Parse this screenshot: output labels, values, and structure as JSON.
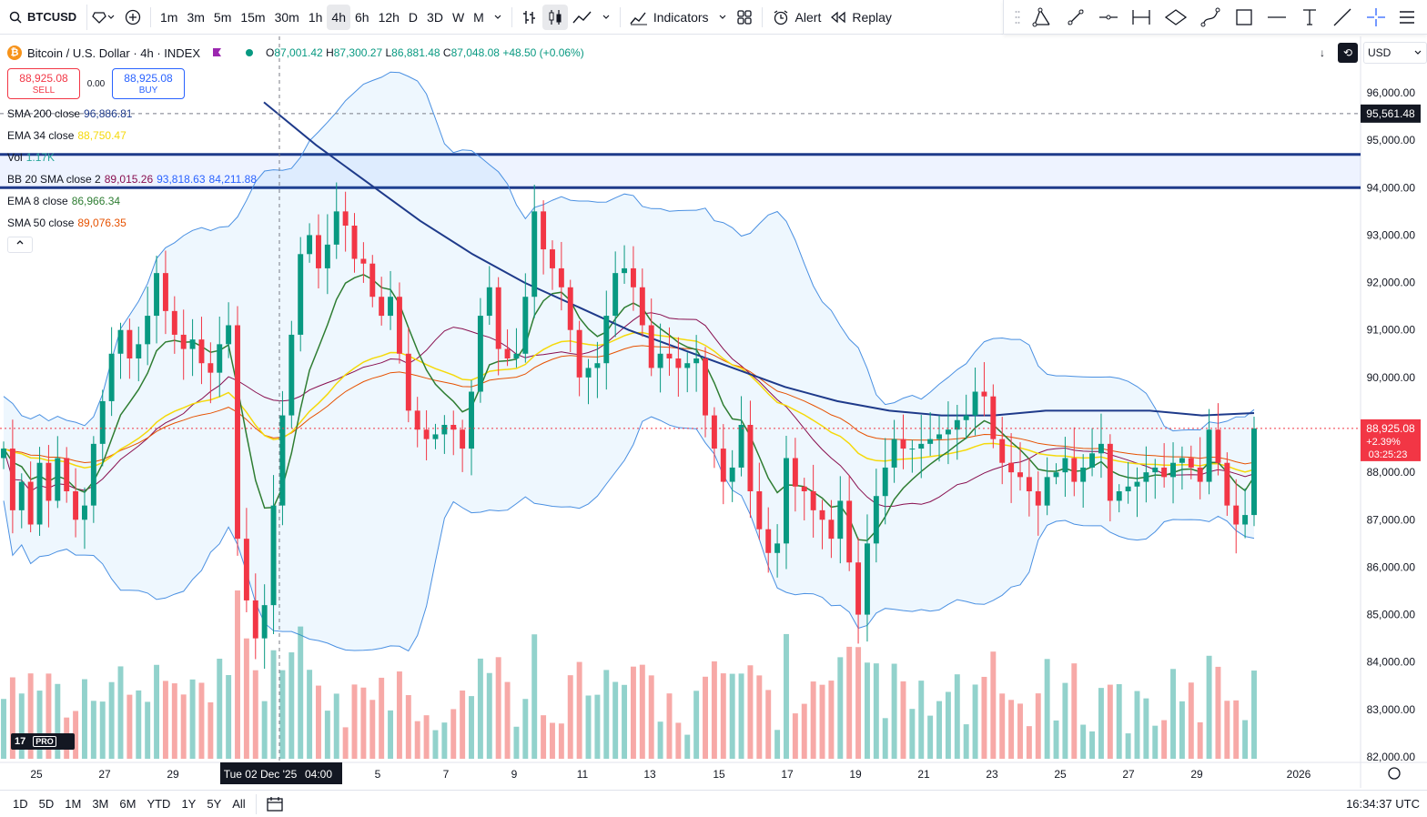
{
  "toolbar": {
    "symbol": "BTCUSD",
    "intervals": [
      "1m",
      "3m",
      "5m",
      "15m",
      "30m",
      "1h",
      "4h",
      "6h",
      "12h",
      "D",
      "3D",
      "W",
      "M"
    ],
    "active_interval": "4h",
    "indicators_label": "Indicators",
    "alert_label": "Alert",
    "replay_label": "Replay"
  },
  "legend": {
    "title": "Bitcoin / U.S. Dollar · 4h · INDEX",
    "open_key": "O",
    "open": "87,001.42",
    "high_key": "H",
    "high": "87,300.27",
    "low_key": "L",
    "low": "86,881.48",
    "close_key": "C",
    "close": "87,048.08",
    "change": "+48.50 (+0.06%)",
    "sell_price": "88,925.08",
    "sell_label": "SELL",
    "spread": "0.00",
    "buy_price": "88,925.08",
    "buy_label": "BUY"
  },
  "indicators": [
    {
      "name": "SMA 200 close",
      "values": [
        "96,886.81"
      ],
      "colors": [
        "#1e3a8a"
      ]
    },
    {
      "name": "EMA 34 close",
      "values": [
        "88,750.47"
      ],
      "colors": [
        "#f5d90a"
      ]
    },
    {
      "name": "Vol",
      "values": [
        "1.17K"
      ],
      "colors": [
        "#26a69a"
      ]
    },
    {
      "name": "BB 20 SMA close 2",
      "values": [
        "89,015.26",
        "93,818.63",
        "84,211.88"
      ],
      "colors": [
        "#880e4f",
        "#2962ff",
        "#2962ff"
      ]
    },
    {
      "name": "EMA 8 close",
      "values": [
        "86,966.34"
      ],
      "colors": [
        "#2e7d32"
      ]
    },
    {
      "name": "SMA 50 close",
      "values": [
        "89,076.35"
      ],
      "colors": [
        "#e65100"
      ]
    }
  ],
  "price_scale": {
    "currency": "USD",
    "ticks": [
      "96,000.00",
      "95,000.00",
      "94,000.00",
      "93,000.00",
      "92,000.00",
      "91,000.00",
      "90,000.00",
      "89,000.00",
      "88,000.00",
      "87,000.00",
      "86,000.00",
      "85,000.00",
      "84,000.00",
      "83,000.00",
      "82,000.00"
    ],
    "crosshair_price": "95,561.48",
    "last_price": "88,925.08",
    "last_change": "+2.39%",
    "countdown": "03:25:23"
  },
  "time_scale": {
    "labels": [
      "25",
      "27",
      "29",
      "Tue 02 Dec '25",
      "04:00",
      "5",
      "7",
      "9",
      "11",
      "13",
      "15",
      "17",
      "19",
      "21",
      "23",
      "25",
      "27",
      "29",
      "2026"
    ]
  },
  "bottom_bar": {
    "ranges": [
      "1D",
      "5D",
      "1M",
      "3M",
      "6M",
      "YTD",
      "1Y",
      "5Y",
      "All"
    ],
    "clock": "16:34:37 UTC"
  },
  "chart_data": {
    "type": "candlestick",
    "symbol": "BTCUSD",
    "interval": "4h",
    "ylim": [
      82000,
      96800
    ],
    "horizontal_levels": [
      94700,
      94000
    ],
    "candles_approx_close": [
      88500,
      87200,
      87800,
      86900,
      88200,
      87400,
      88300,
      87600,
      87000,
      87300,
      88600,
      89500,
      90500,
      91000,
      90400,
      90700,
      91300,
      92200,
      91400,
      90900,
      90600,
      90800,
      90300,
      90100,
      90700,
      91100,
      86600,
      85300,
      84500,
      85200,
      87300,
      89200,
      90900,
      92600,
      93000,
      92300,
      92800,
      93500,
      93200,
      92500,
      92400,
      91700,
      91300,
      91700,
      90500,
      89300,
      88900,
      88700,
      88800,
      89000,
      88900,
      88500,
      89700,
      91300,
      91900,
      90600,
      90400,
      90500,
      91700,
      93500,
      92700,
      92300,
      91900,
      91000,
      90000,
      90200,
      90300,
      91300,
      92200,
      92300,
      91900,
      91100,
      90200,
      90500,
      90400,
      90200,
      90300,
      90400,
      89200,
      88500,
      87800,
      88100,
      89000,
      87600,
      86800,
      86300,
      86500,
      88300,
      87700,
      87600,
      87200,
      87000,
      86600,
      87400,
      86100,
      85000,
      86500,
      87500,
      88100,
      88700,
      88500,
      88500,
      88600,
      88700,
      88800,
      88900,
      89100,
      89200,
      89700,
      89600,
      88700,
      88200,
      88000,
      87900,
      87600,
      87300,
      87900,
      88000,
      88300,
      87800,
      88100,
      88400,
      88600,
      87400,
      87600,
      87700,
      87800,
      88000,
      88100,
      87900,
      88200,
      88300,
      88100,
      87800,
      88900,
      88200,
      87300,
      86900,
      87100,
      88925
    ],
    "sma200_approx": [
      95800,
      94900,
      94100,
      93300,
      92600,
      92000,
      91500,
      91000,
      90600,
      90200,
      89800,
      89500,
      89300,
      89200,
      89200,
      89300,
      89300,
      89300,
      89200,
      89250
    ],
    "volume_max": "1.17K"
  }
}
